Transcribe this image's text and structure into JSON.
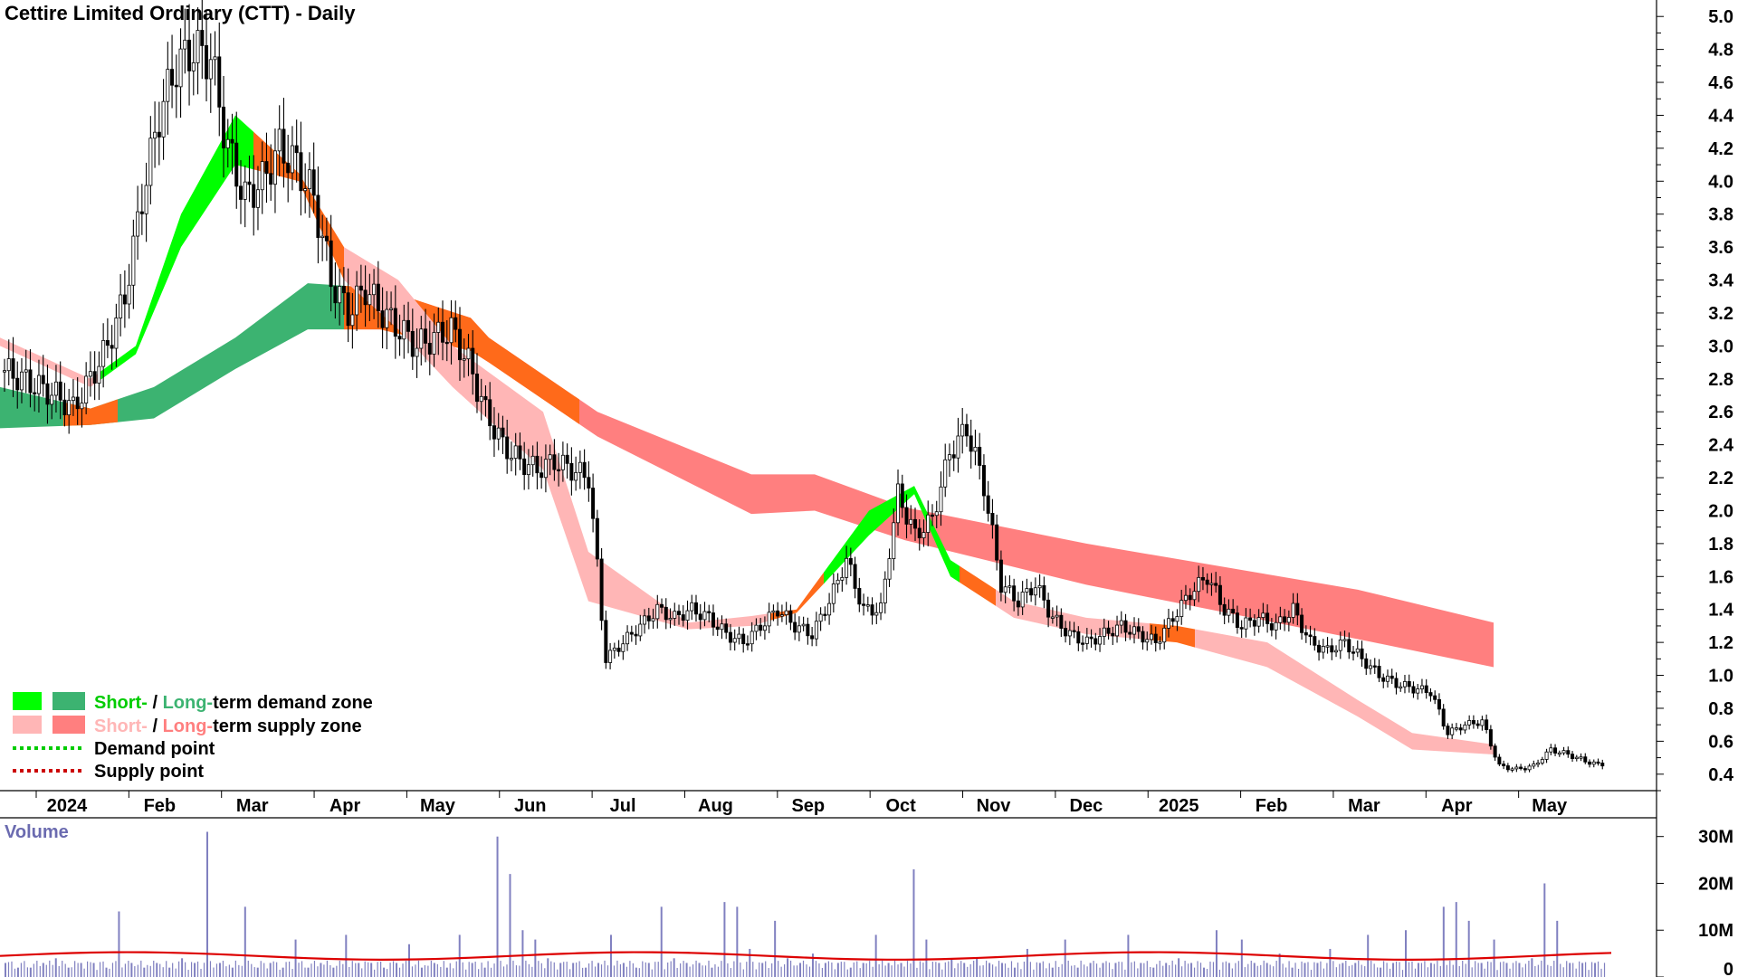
{
  "chart_data": {
    "type": "candlestick",
    "title": "Cettire Limited Ordinary (CTT) - Daily",
    "price_axis": {
      "ylim": [
        0.3,
        5.1
      ],
      "ticks": [
        "5.0",
        "4.8",
        "4.6",
        "4.4",
        "4.2",
        "4.0",
        "3.8",
        "3.6",
        "3.4",
        "3.2",
        "3.0",
        "2.8",
        "2.6",
        "2.4",
        "2.2",
        "2.0",
        "1.8",
        "1.6",
        "1.4",
        "1.2",
        "1.0",
        "0.8",
        "0.6",
        "0.4"
      ]
    },
    "x_axis": {
      "labels": [
        "2024",
        "Feb",
        "Mar",
        "Apr",
        "May",
        "Jun",
        "Jul",
        "Aug",
        "Sep",
        "Oct",
        "Nov",
        "Dec",
        "2025",
        "Feb",
        "Mar",
        "Apr",
        "May"
      ],
      "bold_labels": [
        "2024",
        "2025"
      ]
    },
    "price_series": [
      {
        "month": "2024-01",
        "values": [
          2.85,
          2.8,
          2.75,
          2.7,
          2.62
        ]
      },
      {
        "month": "2024-02",
        "values": [
          2.8,
          3.0,
          3.3,
          3.9,
          4.4,
          4.7,
          4.8
        ]
      },
      {
        "month": "2024-03",
        "values": [
          4.75,
          4.2,
          3.9,
          4.0,
          4.2,
          4.1
        ]
      },
      {
        "month": "2024-04",
        "values": [
          3.9,
          3.4,
          3.2,
          3.35,
          3.2,
          3.1
        ]
      },
      {
        "month": "2024-05",
        "values": [
          3.0,
          3.05,
          3.1,
          2.9,
          2.6,
          2.4,
          2.3
        ]
      },
      {
        "month": "2024-06",
        "values": [
          2.25,
          2.3,
          2.25,
          2.2
        ]
      },
      {
        "month": "2024-07",
        "values": [
          1.1,
          1.2,
          1.3,
          1.4,
          1.35,
          1.4
        ]
      },
      {
        "month": "2024-08",
        "values": [
          1.35,
          1.25,
          1.2,
          1.3,
          1.4,
          1.3
        ]
      },
      {
        "month": "2024-09",
        "values": [
          1.25,
          1.45,
          1.7,
          1.4,
          1.4
        ]
      },
      {
        "month": "2024-10",
        "values": [
          2.1,
          1.85,
          1.95,
          2.35,
          2.5,
          2.15
        ]
      },
      {
        "month": "2024-11",
        "values": [
          1.55,
          1.45,
          1.55,
          1.35,
          1.25
        ]
      },
      {
        "month": "2024-12",
        "values": [
          1.2,
          1.25,
          1.3,
          1.25,
          1.2
        ]
      },
      {
        "month": "2025-01",
        "values": [
          1.35,
          1.5,
          1.6,
          1.4,
          1.3,
          1.35
        ]
      },
      {
        "month": "2025-02",
        "values": [
          1.3,
          1.4,
          1.2,
          1.15,
          1.2
        ]
      },
      {
        "month": "2025-03",
        "values": [
          1.1,
          1.0,
          0.95,
          0.92,
          0.9
        ]
      },
      {
        "month": "2025-04",
        "values": [
          0.65,
          0.7,
          0.72,
          0.45,
          0.43
        ]
      },
      {
        "month": "2025-05",
        "values": [
          0.45,
          0.55,
          0.52,
          0.48,
          0.45
        ]
      }
    ],
    "zones": [
      {
        "name": "long_term_band",
        "points": [
          [
            0,
            2.75,
            2.5
          ],
          [
            100,
            2.62,
            2.52
          ],
          [
            170,
            2.75,
            2.56
          ],
          [
            260,
            3.05,
            2.86
          ],
          [
            340,
            3.38,
            3.1
          ],
          [
            420,
            3.35,
            3.1
          ],
          [
            520,
            3.17,
            2.97
          ],
          [
            540,
            3.05,
            2.9
          ],
          [
            660,
            2.6,
            2.45
          ],
          [
            830,
            2.22,
            1.98
          ],
          [
            900,
            2.22,
            2.0
          ],
          [
            1000,
            2.02,
            1.82
          ],
          [
            1200,
            1.8,
            1.55
          ],
          [
            1500,
            1.52,
            1.22
          ],
          [
            1650,
            1.32,
            1.05
          ]
        ]
      },
      {
        "name": "short_term_band",
        "points": [
          [
            0,
            3.05,
            3.0
          ],
          [
            100,
            2.8,
            2.75
          ],
          [
            150,
            3.0,
            2.95
          ],
          [
            200,
            3.8,
            3.6
          ],
          [
            260,
            4.4,
            4.1
          ],
          [
            330,
            4.05,
            4.0
          ],
          [
            380,
            3.6,
            3.4
          ],
          [
            440,
            3.4,
            3.1
          ],
          [
            500,
            3.0,
            2.75
          ],
          [
            600,
            2.6,
            2.25
          ],
          [
            650,
            1.75,
            1.45
          ],
          [
            760,
            1.32,
            1.28
          ],
          [
            830,
            1.36,
            1.3
          ],
          [
            880,
            1.4,
            1.38
          ],
          [
            960,
            2.0,
            1.85
          ],
          [
            1010,
            2.15,
            2.1
          ],
          [
            1050,
            1.7,
            1.6
          ],
          [
            1120,
            1.45,
            1.35
          ],
          [
            1200,
            1.35,
            1.25
          ],
          [
            1300,
            1.3,
            1.2
          ],
          [
            1400,
            1.2,
            1.05
          ],
          [
            1500,
            0.85,
            0.75
          ],
          [
            1560,
            0.65,
            0.55
          ],
          [
            1650,
            0.58,
            0.52
          ]
        ]
      }
    ],
    "legend": [
      {
        "label": "Demand point",
        "color": "#00cc00"
      },
      {
        "label": "Supply point",
        "color": "#cc0000"
      }
    ],
    "legend_zone_text": {
      "demand_parts": [
        "Short-",
        " / ",
        "Long-",
        "term demand zone"
      ],
      "supply_parts": [
        "Short-",
        " / ",
        "Long-",
        "term supply zone"
      ]
    },
    "volume": {
      "label": "Volume",
      "ticks": [
        "30M",
        "20M",
        "10M",
        "0"
      ],
      "ylim": [
        0,
        34
      ],
      "average_level_millions": 4.5,
      "bars_millions": [
        3,
        2,
        2,
        3,
        4,
        2,
        3,
        3,
        2,
        14,
        3,
        2,
        3,
        2,
        4,
        3,
        31,
        3,
        2,
        15,
        2,
        3,
        2,
        8,
        2,
        3,
        2,
        9,
        3,
        3,
        2,
        3,
        7,
        2,
        3,
        2,
        9,
        3,
        2,
        30,
        22,
        10,
        8,
        4,
        3,
        3,
        2,
        3,
        9,
        3,
        2,
        3,
        15,
        4,
        3,
        3,
        2,
        16,
        15,
        6,
        3,
        12,
        4,
        3,
        5,
        3,
        3,
        2,
        3,
        9,
        3,
        3,
        23,
        8,
        3,
        4,
        3,
        4,
        3,
        3,
        2,
        6,
        3,
        2,
        8,
        2,
        3,
        3,
        3,
        9,
        3,
        2,
        3,
        4,
        3,
        2,
        10,
        3,
        8,
        3,
        3,
        5,
        2,
        3,
        3,
        6,
        3,
        3,
        9,
        2,
        3,
        10,
        3,
        3,
        15,
        16,
        12,
        3,
        8,
        3,
        3,
        4,
        20,
        12,
        3,
        3,
        3
      ]
    },
    "colors": {
      "demand_short": "#00ff00",
      "demand_long": "#3cb371",
      "supply_short": "#ffb6b6",
      "supply_long": "#ff7f7f",
      "transition": "#ff6a1a",
      "volume_bar": "#8080c0",
      "volume_avg": "#dd0000"
    }
  }
}
